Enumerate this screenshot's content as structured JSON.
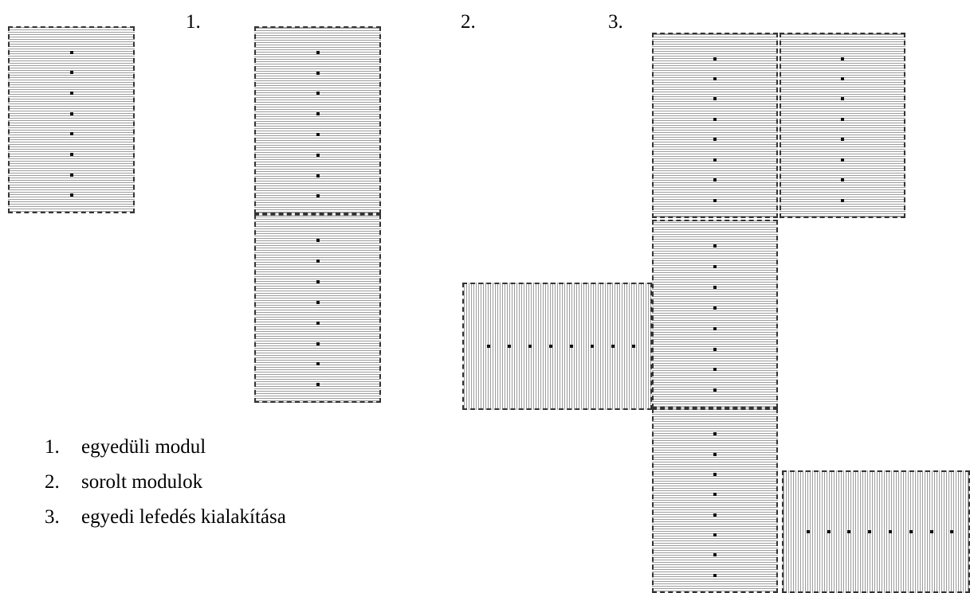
{
  "labels": {
    "one": "1.",
    "two": "2.",
    "three": "3."
  },
  "legend": [
    {
      "num": "1.",
      "text": "egyedüli modul"
    },
    {
      "num": "2.",
      "text": "sorolt modulok"
    },
    {
      "num": "3.",
      "text": "egyedi lefedés kialakítása"
    }
  ],
  "colors": {
    "stripe": "#9c9c9c",
    "border": "#333333",
    "dot": "#111111"
  }
}
